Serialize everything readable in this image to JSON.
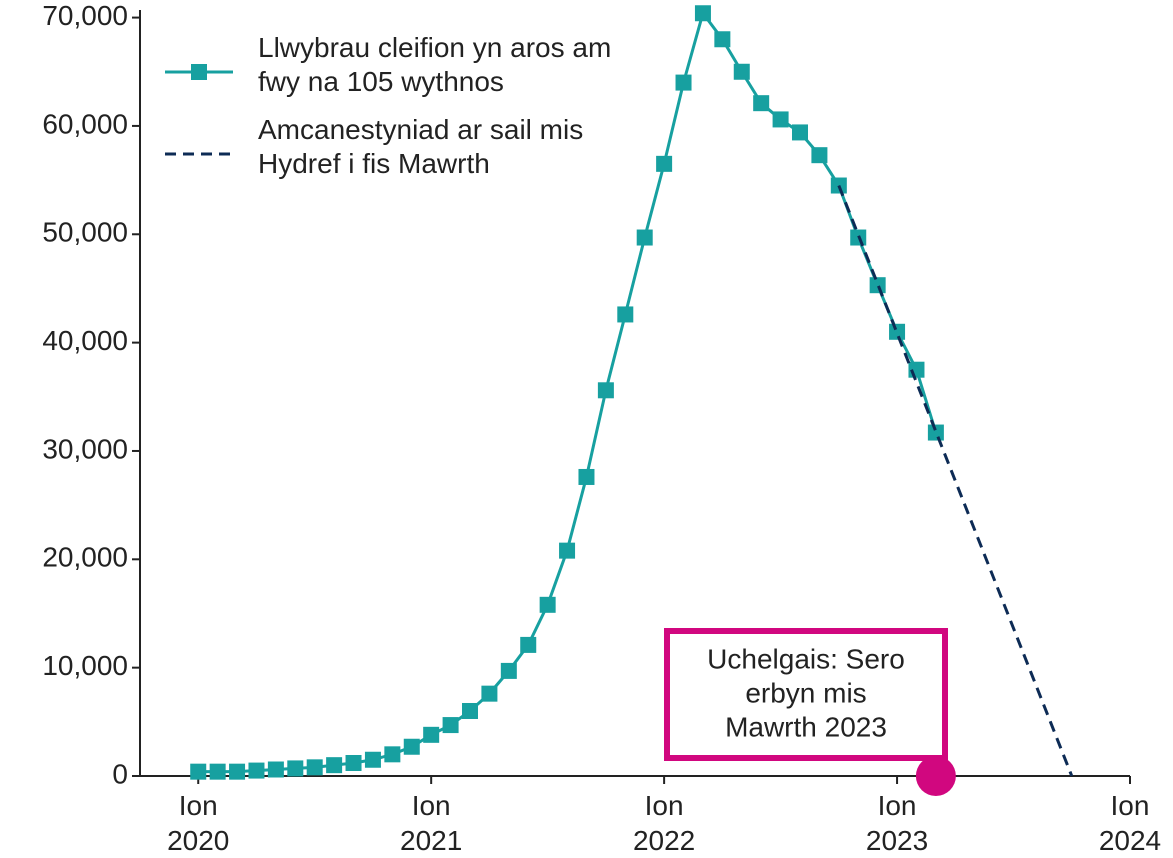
{
  "chart_data": {
    "type": "line",
    "x": [
      "2020-01",
      "2020-02",
      "2020-03",
      "2020-04",
      "2020-05",
      "2020-06",
      "2020-07",
      "2020-08",
      "2020-09",
      "2020-10",
      "2020-11",
      "2020-12",
      "2021-01",
      "2021-02",
      "2021-03",
      "2021-04",
      "2021-05",
      "2021-06",
      "2021-07",
      "2021-08",
      "2021-09",
      "2021-10",
      "2021-11",
      "2021-12",
      "2022-01",
      "2022-02",
      "2022-03",
      "2022-04",
      "2022-05",
      "2022-06",
      "2022-07",
      "2022-08",
      "2022-09",
      "2022-10",
      "2022-11",
      "2022-12",
      "2023-01",
      "2023-02",
      "2023-03"
    ],
    "series": [
      {
        "name": "Llwybrau cleifion yn aros am fwy na 105 wythnos",
        "color": "#17a0a0",
        "marker": "square",
        "values": [
          400,
          400,
          400,
          500,
          600,
          700,
          800,
          1000,
          1200,
          1500,
          2000,
          2700,
          3800,
          4700,
          6000,
          7600,
          9700,
          12100,
          15800,
          20800,
          27600,
          35600,
          42600,
          49700,
          56500,
          64000,
          70400,
          68000,
          65000,
          62100,
          60600,
          59400,
          57300,
          54500,
          49700,
          45300,
          41000,
          37500,
          31700
        ]
      },
      {
        "name": "Amcanestyniad ar sail mis Hydref i fis Mawrth",
        "color": "#0d2b55",
        "dashed": true,
        "x": [
          "2022-10",
          "2023-10"
        ],
        "values": [
          54500,
          0
        ]
      }
    ],
    "target": {
      "x": "2023-03",
      "value": 0,
      "color": "#d1077f"
    },
    "annotation": [
      "Uchelgais: Sero",
      "erbyn mis",
      "Mawrth 2023"
    ],
    "xlim": [
      "2019-10",
      "2024-01"
    ],
    "xticks": [
      {
        "value": "2020-01",
        "label": "Ion 2020"
      },
      {
        "value": "2021-01",
        "label": "Ion 2021"
      },
      {
        "value": "2022-01",
        "label": "Ion 2022"
      },
      {
        "value": "2023-01",
        "label": "Ion 2023"
      },
      {
        "value": "2024-01",
        "label": "Ion 2024"
      }
    ],
    "ylim": [
      0,
      70700
    ],
    "yticks": [
      0,
      {
        "value": 10000,
        "label": "10,000"
      },
      {
        "value": 20000,
        "label": "20,000"
      },
      {
        "value": 30000,
        "label": "30,000"
      },
      {
        "value": 40000,
        "label": "40,000"
      },
      {
        "value": 50000,
        "label": "50,000"
      },
      {
        "value": 60000,
        "label": "60,000"
      },
      {
        "value": 70000,
        "label": "70,000"
      }
    ],
    "legend": "upper left"
  }
}
